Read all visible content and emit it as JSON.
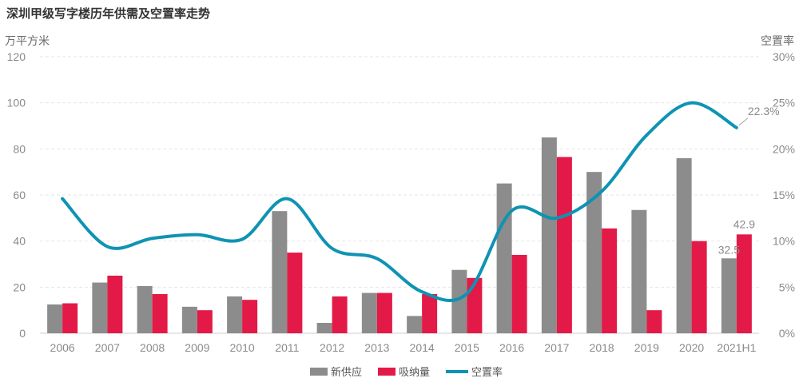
{
  "chart_data": {
    "type": "bar",
    "title": "深圳甲级写字楼历年供需及空置率走势",
    "ylabel_left": "万平方米",
    "ylabel_right": "空置率",
    "ylim_left": [
      0,
      120
    ],
    "ylim_right": [
      0,
      30
    ],
    "yticks_left": [
      "0",
      "20",
      "40",
      "60",
      "80",
      "100",
      "120"
    ],
    "yticks_right": [
      "0%",
      "5%",
      "10%",
      "15%",
      "20%",
      "25%",
      "30%"
    ],
    "categories": [
      "2006",
      "2007",
      "2008",
      "2009",
      "2010",
      "2011",
      "2012",
      "2013",
      "2014",
      "2015",
      "2016",
      "2017",
      "2018",
      "2019",
      "2020",
      "2021H1"
    ],
    "series": [
      {
        "name": "新供应",
        "type": "bar",
        "color": "#8c8c8c",
        "values": [
          12.5,
          22,
          20.5,
          11.5,
          16,
          53,
          4.5,
          17.5,
          7.5,
          27.5,
          65,
          85,
          70,
          53.5,
          76,
          32.5
        ]
      },
      {
        "name": "吸纳量",
        "type": "bar",
        "color": "#e31a47",
        "values": [
          13,
          25,
          17,
          10,
          14.5,
          35,
          16,
          17.5,
          17,
          24,
          34,
          76.5,
          45.5,
          10,
          40,
          42.9
        ]
      },
      {
        "name": "空置率",
        "type": "line",
        "color": "#0e93b3",
        "values": [
          14.6,
          9.4,
          10.3,
          10.7,
          10.2,
          14.6,
          9.2,
          8.1,
          4.5,
          4.3,
          13.3,
          12.5,
          15.4,
          21.5,
          25.0,
          22.3
        ]
      }
    ],
    "data_labels": {
      "supply_last": "32.5",
      "absorption_last": "42.9",
      "vacancy_last": "22.3%"
    }
  }
}
